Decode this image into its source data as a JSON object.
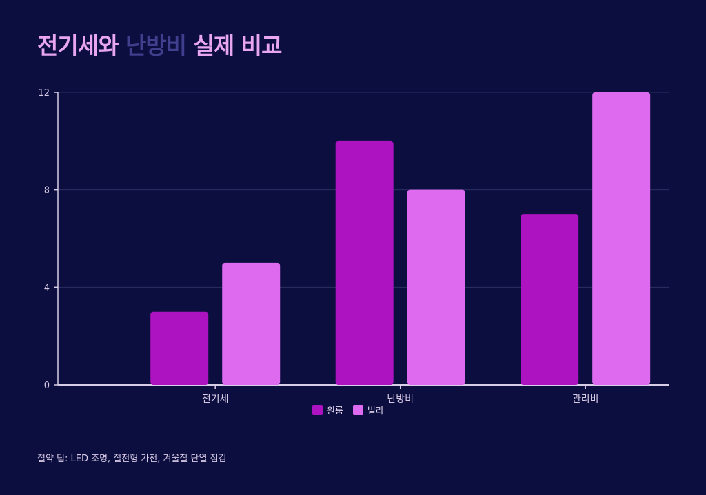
{
  "title": {
    "part1": "전기세와",
    "part2": "난방비",
    "part3": "실제 비교"
  },
  "footnote": "절약 팁: LED 조명, 절전형 가전, 겨울철 단열 점검",
  "colors": {
    "background": "#0b0e3f",
    "title_primary": "#e7a6ef",
    "title_accent": "#3f3f8e",
    "grid": "#2c2e63",
    "axis": "#d8cde6",
    "tick_text": "#d9cbe6"
  },
  "chart_data": {
    "type": "bar",
    "categories": [
      "전기세",
      "난방비",
      "관리비"
    ],
    "series": [
      {
        "name": "원룸",
        "values": [
          3,
          10,
          7
        ],
        "color": "#ad13c1"
      },
      {
        "name": "빌라",
        "values": [
          5,
          8,
          12
        ],
        "color": "#dd6aef"
      }
    ],
    "ylim": [
      0,
      12
    ],
    "yticks": [
      0,
      4,
      8,
      12
    ],
    "grid": true,
    "legend": "bottom-center"
  }
}
